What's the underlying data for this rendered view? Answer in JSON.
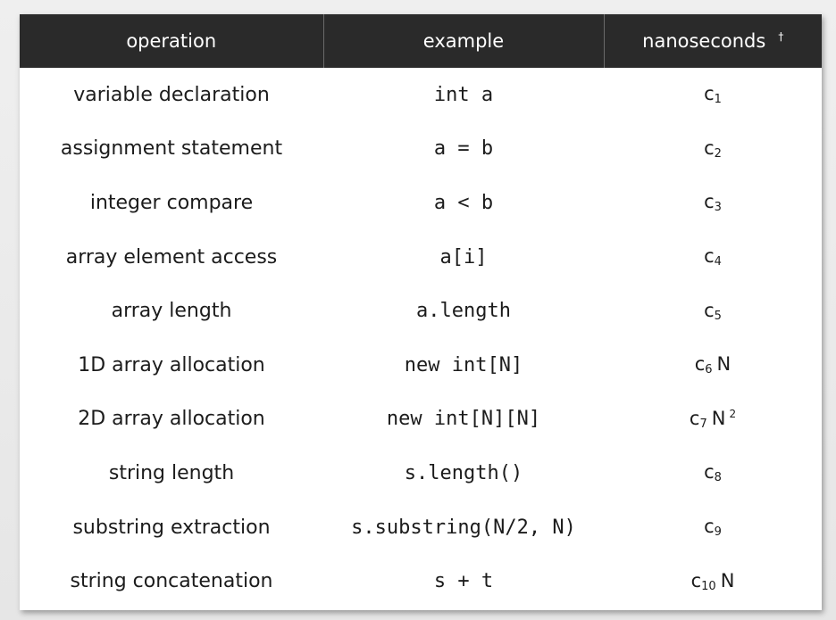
{
  "header": {
    "operation": "operation",
    "example": "example",
    "nanoseconds": "nanoseconds",
    "dagger": "†"
  },
  "rows": [
    {
      "operation": "variable declaration",
      "example": "int a",
      "cost_base": "c",
      "cost_sub": "1",
      "cost_n": "",
      "cost_sup": ""
    },
    {
      "operation": "assignment statement",
      "example": "a = b",
      "cost_base": "c",
      "cost_sub": "2",
      "cost_n": "",
      "cost_sup": ""
    },
    {
      "operation": "integer compare",
      "example": "a < b",
      "cost_base": "c",
      "cost_sub": "3",
      "cost_n": "",
      "cost_sup": ""
    },
    {
      "operation": "array element access",
      "example": "a[i]",
      "cost_base": "c",
      "cost_sub": "4",
      "cost_n": "",
      "cost_sup": ""
    },
    {
      "operation": "array length",
      "example": "a.length",
      "cost_base": "c",
      "cost_sub": "5",
      "cost_n": "",
      "cost_sup": ""
    },
    {
      "operation": "1D array allocation",
      "example": "new int[N]",
      "cost_base": "c",
      "cost_sub": "6",
      "cost_n": "N",
      "cost_sup": ""
    },
    {
      "operation": "2D array allocation",
      "example": "new int[N][N]",
      "cost_base": "c",
      "cost_sub": "7",
      "cost_n": "N",
      "cost_sup": "2"
    },
    {
      "operation": "string length",
      "example": "s.length()",
      "cost_base": "c",
      "cost_sub": "8",
      "cost_n": "",
      "cost_sup": ""
    },
    {
      "operation": "substring extraction",
      "example": "s.substring(N/2, N)",
      "cost_base": "c",
      "cost_sub": "9",
      "cost_n": "",
      "cost_sup": ""
    },
    {
      "operation": "string concatenation",
      "example": "s + t",
      "cost_base": "c",
      "cost_sub": "10",
      "cost_n": "N",
      "cost_sup": ""
    }
  ]
}
